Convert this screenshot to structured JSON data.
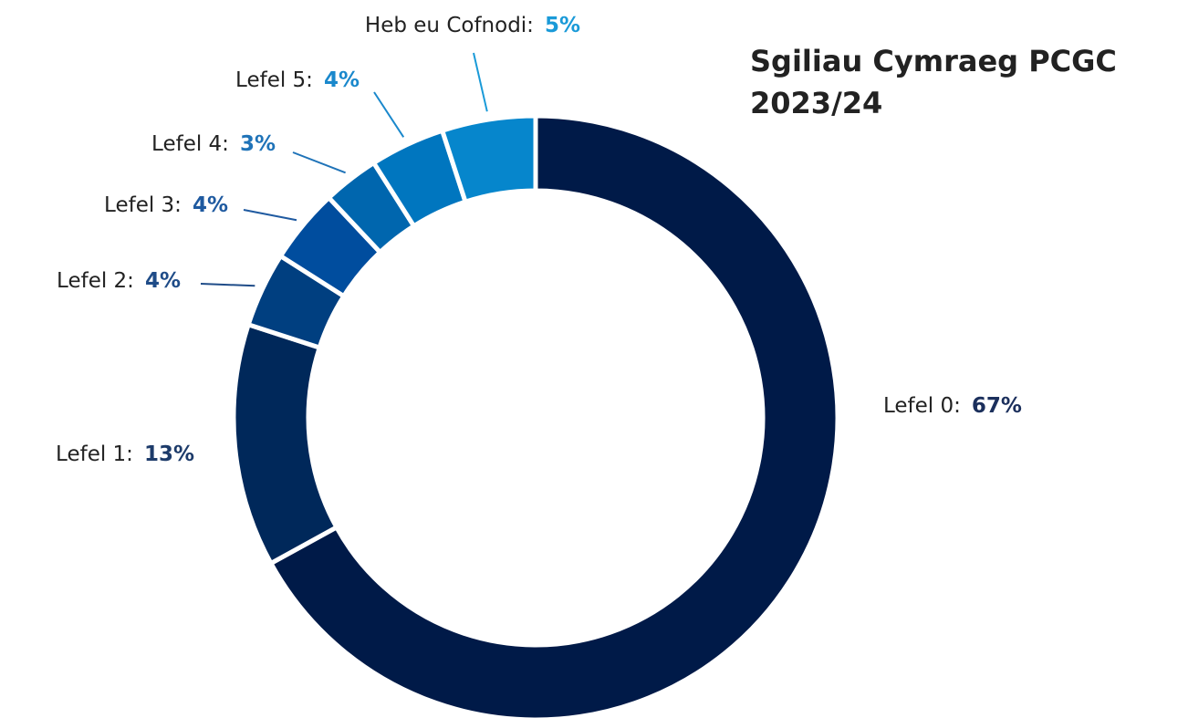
{
  "chart_data": {
    "type": "donut",
    "title": "Sgiliau Cymraeg PCGC\n2023/24",
    "categories": [
      "Lefel 0:",
      "Lefel 1:",
      "Lefel 2:",
      "Lefel 3:",
      "Lefel 4:",
      "Lefel 5:",
      "Heb eu Cofnodi:"
    ],
    "values": [
      67,
      13,
      4,
      4,
      3,
      4,
      5
    ],
    "value_labels": [
      "67%",
      "13%",
      "4%",
      "4%",
      "3%",
      "4%",
      "5%"
    ],
    "colors": [
      "#001a48",
      "#00285a",
      "#003f80",
      "#004d9e",
      "#0066ae",
      "#0076bf",
      "#0686cc"
    ],
    "label_colors": [
      "#1b2f5c",
      "#1d3b6a",
      "#1f4c88",
      "#1f5aa0",
      "#1f73b8",
      "#1a88cc",
      "#1a9ad8"
    ]
  }
}
